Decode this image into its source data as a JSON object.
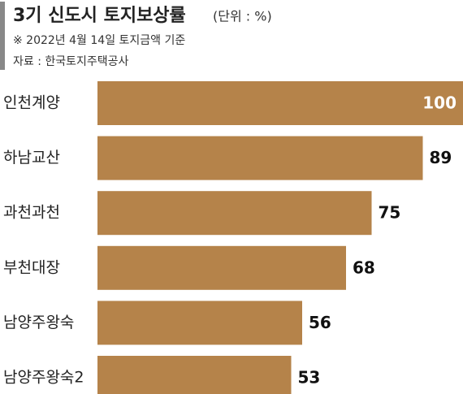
{
  "chart_data": {
    "type": "hbar",
    "title": "3기 신도시 토지보상률",
    "unit": "(단위 : %)",
    "note": "※ 2022년 4월 14일 토지금액 기준",
    "source": "자료 : 한국토지주택공사",
    "categories": [
      "인천계양",
      "하남교산",
      "과천과천",
      "부천대장",
      "남양주왕숙",
      "남양주왕숙2"
    ],
    "values": [
      100,
      89,
      75,
      68,
      56,
      53
    ],
    "color": "#b5834a"
  }
}
